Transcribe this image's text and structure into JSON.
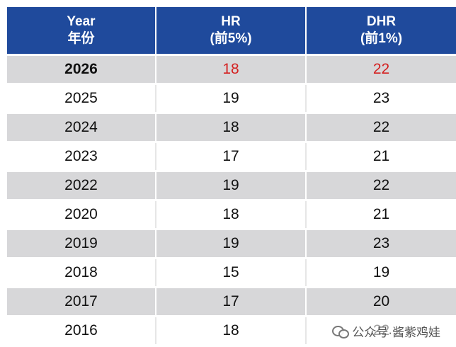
{
  "table": {
    "headers": [
      {
        "line1": "Year",
        "line2": "年份"
      },
      {
        "line1": "HR",
        "line2": "(前5%)"
      },
      {
        "line1": "DHR",
        "line2": "(前1%)"
      }
    ],
    "rows": [
      {
        "year": "2026",
        "hr": "18",
        "dhr": "22"
      },
      {
        "year": "2025",
        "hr": "19",
        "dhr": "23"
      },
      {
        "year": "2024",
        "hr": "18",
        "dhr": "22"
      },
      {
        "year": "2023",
        "hr": "17",
        "dhr": "21"
      },
      {
        "year": "2022",
        "hr": "19",
        "dhr": "22"
      },
      {
        "year": "2020",
        "hr": "18",
        "dhr": "21"
      },
      {
        "year": "2019",
        "hr": "19",
        "dhr": "23"
      },
      {
        "year": "2018",
        "hr": "15",
        "dhr": "19"
      },
      {
        "year": "2017",
        "hr": "17",
        "dhr": "20"
      },
      {
        "year": "2016",
        "hr": "18",
        "dhr": "22"
      }
    ]
  },
  "colors": {
    "header_bg": "#1f4a9c",
    "highlight_text": "#d42020",
    "shaded_row": "#d7d7d9"
  },
  "watermark": {
    "icon": "wechat-icon",
    "text": "公众号·酱紫鸡娃"
  }
}
